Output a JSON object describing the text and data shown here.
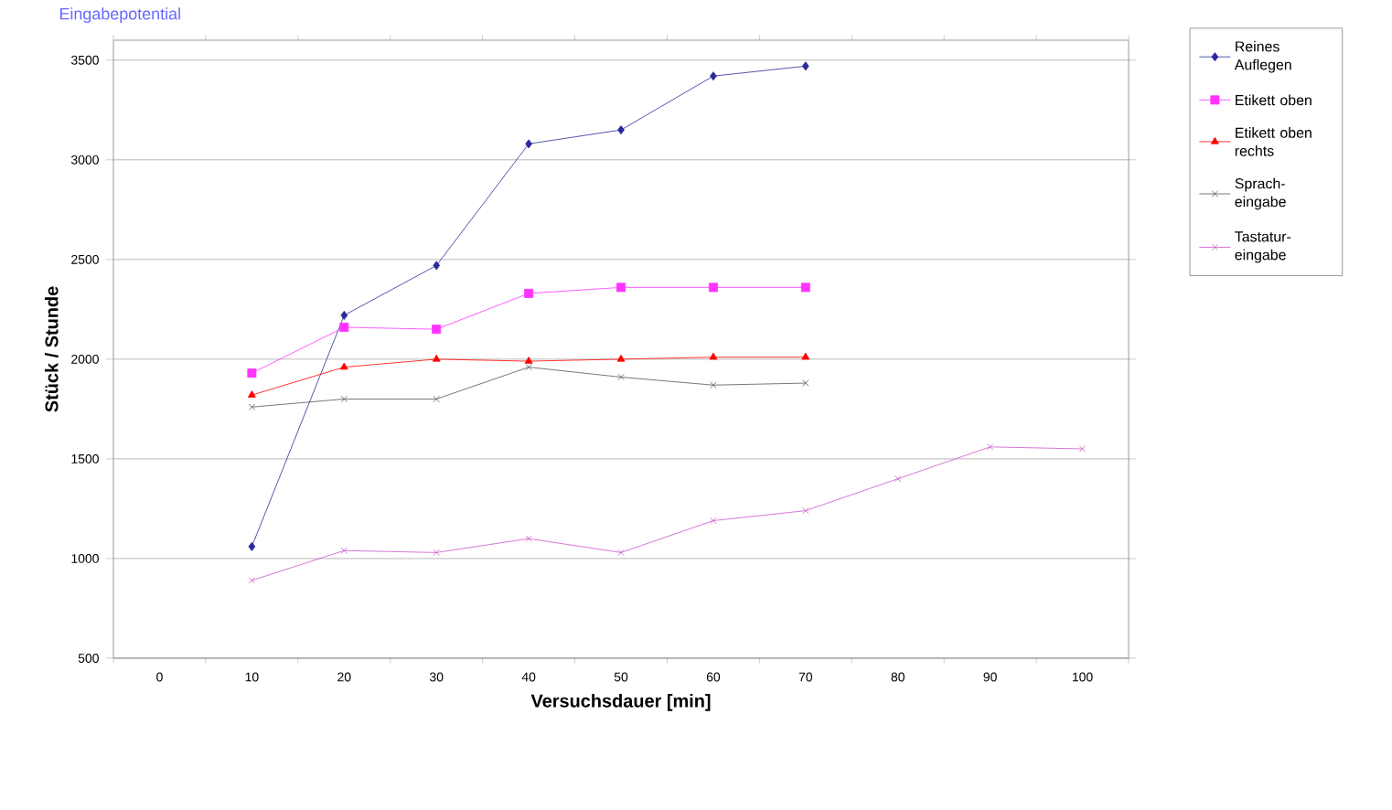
{
  "chart_data": {
    "type": "line",
    "title": "Eingabepotential",
    "xlabel": "Versuchsdauer [min]",
    "ylabel": "Stück / Stunde",
    "categories": [
      "0",
      "10",
      "20",
      "30",
      "40",
      "50",
      "60",
      "70",
      "80",
      "90",
      "100"
    ],
    "ylim": [
      500,
      3600
    ],
    "yticks": [
      500,
      1000,
      1500,
      2000,
      2500,
      3000,
      3500
    ],
    "grid": "y",
    "legend": "right",
    "line_style": "solid",
    "series": [
      {
        "name": "Reines Auflegen",
        "color": "#2a2a9a",
        "marker": "diamond",
        "values": [
          null,
          1060,
          2220,
          2470,
          3080,
          3150,
          3420,
          3470,
          null,
          null,
          null
        ]
      },
      {
        "name": "Etikett oben",
        "color": "#ff33ff",
        "marker": "square",
        "values": [
          null,
          1930,
          2160,
          2150,
          2330,
          2360,
          2360,
          2360,
          null,
          null,
          null
        ]
      },
      {
        "name": "Etikett oben rechts",
        "color": "#ff0000",
        "marker": "triangle",
        "values": [
          null,
          1820,
          1960,
          2000,
          1990,
          2000,
          2010,
          2010,
          null,
          null,
          null
        ]
      },
      {
        "name": "Sprach-eingabe",
        "color": "#555555",
        "marker": "cross",
        "values": [
          null,
          1760,
          1800,
          1800,
          1960,
          1910,
          1870,
          1880,
          null,
          null,
          null
        ]
      },
      {
        "name": "Tastatur-eingabe",
        "color": "#cc55cc",
        "marker": "cross",
        "values": [
          null,
          890,
          1040,
          1030,
          1100,
          1030,
          1190,
          1240,
          1400,
          1560,
          1550
        ]
      }
    ]
  }
}
